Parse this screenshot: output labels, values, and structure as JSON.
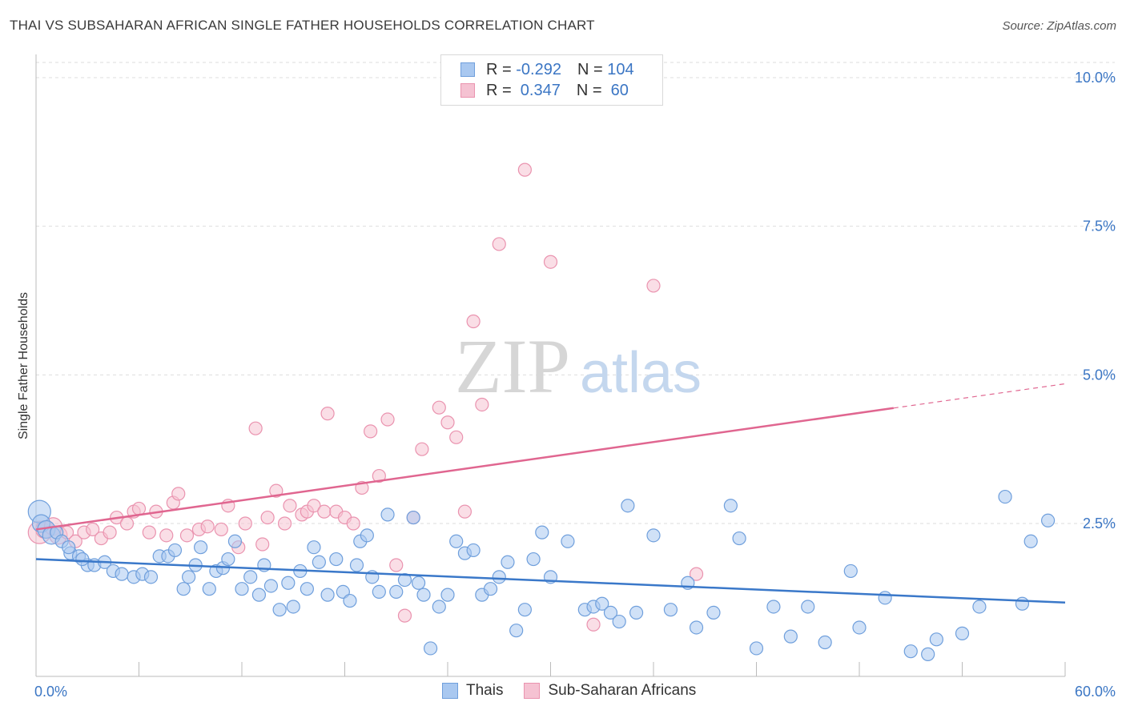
{
  "title": "THAI VS SUBSAHARAN AFRICAN SINGLE FATHER HOUSEHOLDS CORRELATION CHART",
  "source": "Source: ZipAtlas.com",
  "watermark": {
    "zip": "ZIP",
    "atlas": "atlas"
  },
  "legend_stats": [
    {
      "r_label": "R = ",
      "r_value": "-0.292",
      "n_label": "N = ",
      "n_value": "104"
    },
    {
      "r_label": "R = ",
      "r_value": " 0.347",
      "n_label": "N = ",
      "n_value": " 60"
    }
  ],
  "colors": {
    "thais_fill": "#a9c8f0",
    "thais_stroke": "#6f9fdc",
    "thais_line": "#3a78c9",
    "ssa_fill": "#f5c2d2",
    "ssa_stroke": "#ea93af",
    "ssa_line": "#e06690",
    "tick_label": "#3b76c4",
    "grid": "#dddddd"
  },
  "chart_data": {
    "type": "scatter",
    "title": "THAI VS SUBSAHARAN AFRICAN SINGLE FATHER HOUSEHOLDS CORRELATION CHART",
    "xlabel": "",
    "ylabel": "Single Father Households",
    "xlim": [
      0,
      60
    ],
    "ylim": [
      0,
      10.5
    ],
    "x_tick_labels": [
      "0.0%",
      "60.0%"
    ],
    "y_ticks": [
      2.5,
      5.0,
      7.5,
      10.0
    ],
    "y_tick_labels": [
      "2.5%",
      "5.0%",
      "7.5%",
      "10.0%"
    ],
    "grid": true,
    "legend_position": "top-center",
    "series": [
      {
        "name": "Thais",
        "r": -0.292,
        "n": 104,
        "trend": {
          "x": [
            0,
            60
          ],
          "y": [
            1.9,
            1.17
          ]
        },
        "points": [
          [
            0.2,
            2.7
          ],
          [
            0.3,
            2.5
          ],
          [
            0.6,
            2.4
          ],
          [
            0.9,
            2.3
          ],
          [
            1.2,
            2.35
          ],
          [
            1.5,
            2.2
          ],
          [
            2.0,
            2.0
          ],
          [
            2.5,
            1.95
          ],
          [
            1.9,
            2.1
          ],
          [
            3.0,
            1.8
          ],
          [
            2.7,
            1.9
          ],
          [
            3.4,
            1.8
          ],
          [
            4.0,
            1.85
          ],
          [
            4.5,
            1.7
          ],
          [
            5.0,
            1.65
          ],
          [
            5.7,
            1.6
          ],
          [
            6.2,
            1.65
          ],
          [
            6.7,
            1.6
          ],
          [
            7.2,
            1.95
          ],
          [
            7.7,
            1.95
          ],
          [
            8.1,
            2.05
          ],
          [
            8.6,
            1.4
          ],
          [
            8.9,
            1.6
          ],
          [
            9.3,
            1.8
          ],
          [
            9.6,
            2.1
          ],
          [
            10.1,
            1.4
          ],
          [
            10.5,
            1.7
          ],
          [
            10.9,
            1.75
          ],
          [
            11.2,
            1.9
          ],
          [
            11.6,
            2.2
          ],
          [
            12.0,
            1.4
          ],
          [
            12.5,
            1.6
          ],
          [
            13.0,
            1.3
          ],
          [
            13.3,
            1.8
          ],
          [
            13.7,
            1.45
          ],
          [
            14.2,
            1.05
          ],
          [
            14.7,
            1.5
          ],
          [
            15.0,
            1.1
          ],
          [
            15.4,
            1.7
          ],
          [
            15.8,
            1.4
          ],
          [
            16.2,
            2.1
          ],
          [
            16.5,
            1.85
          ],
          [
            17.0,
            1.3
          ],
          [
            17.5,
            1.9
          ],
          [
            17.9,
            1.35
          ],
          [
            18.3,
            1.2
          ],
          [
            18.7,
            1.8
          ],
          [
            18.9,
            2.2
          ],
          [
            19.3,
            2.3
          ],
          [
            19.6,
            1.6
          ],
          [
            20.0,
            1.35
          ],
          [
            20.5,
            2.65
          ],
          [
            21.0,
            1.35
          ],
          [
            21.5,
            1.55
          ],
          [
            22.0,
            2.6
          ],
          [
            22.3,
            1.5
          ],
          [
            22.6,
            1.3
          ],
          [
            23.0,
            0.4
          ],
          [
            23.5,
            1.1
          ],
          [
            24.0,
            1.3
          ],
          [
            24.5,
            2.2
          ],
          [
            25.0,
            2.0
          ],
          [
            25.5,
            2.05
          ],
          [
            26.0,
            1.3
          ],
          [
            26.5,
            1.4
          ],
          [
            27.0,
            1.6
          ],
          [
            27.5,
            1.85
          ],
          [
            28.0,
            0.7
          ],
          [
            28.5,
            1.05
          ],
          [
            29.0,
            1.9
          ],
          [
            29.5,
            2.35
          ],
          [
            30.0,
            1.6
          ],
          [
            31.0,
            2.2
          ],
          [
            32.0,
            1.05
          ],
          [
            32.5,
            1.1
          ],
          [
            33.0,
            1.15
          ],
          [
            33.5,
            1.0
          ],
          [
            34.0,
            0.85
          ],
          [
            34.5,
            2.8
          ],
          [
            35.0,
            1.0
          ],
          [
            36.0,
            2.3
          ],
          [
            37.0,
            1.05
          ],
          [
            38.0,
            1.5
          ],
          [
            38.5,
            0.75
          ],
          [
            39.5,
            1.0
          ],
          [
            40.5,
            2.8
          ],
          [
            41.0,
            2.25
          ],
          [
            42.0,
            0.4
          ],
          [
            43.0,
            1.1
          ],
          [
            44.0,
            0.6
          ],
          [
            45.0,
            1.1
          ],
          [
            46.0,
            0.5
          ],
          [
            47.5,
            1.7
          ],
          [
            48.0,
            0.75
          ],
          [
            49.5,
            1.25
          ],
          [
            51.0,
            0.35
          ],
          [
            52.0,
            0.3
          ],
          [
            52.5,
            0.55
          ],
          [
            54.0,
            0.65
          ],
          [
            55.0,
            1.1
          ],
          [
            56.5,
            2.95
          ],
          [
            57.5,
            1.15
          ],
          [
            58.0,
            2.2
          ],
          [
            59.0,
            2.55
          ]
        ]
      },
      {
        "name": "Sub-Saharan Africans",
        "r": 0.347,
        "n": 60,
        "trend": {
          "x": [
            0,
            60
          ],
          "y": [
            2.4,
            4.85
          ]
        },
        "points": [
          [
            0.2,
            2.35
          ],
          [
            0.5,
            2.4
          ],
          [
            1.0,
            2.45
          ],
          [
            1.3,
            2.3
          ],
          [
            1.8,
            2.35
          ],
          [
            2.3,
            2.2
          ],
          [
            2.8,
            2.35
          ],
          [
            3.3,
            2.4
          ],
          [
            3.8,
            2.25
          ],
          [
            4.3,
            2.35
          ],
          [
            4.7,
            2.6
          ],
          [
            5.3,
            2.5
          ],
          [
            5.7,
            2.7
          ],
          [
            6.0,
            2.75
          ],
          [
            6.6,
            2.35
          ],
          [
            7.0,
            2.7
          ],
          [
            7.6,
            2.3
          ],
          [
            8.0,
            2.85
          ],
          [
            8.3,
            3.0
          ],
          [
            8.8,
            2.3
          ],
          [
            9.5,
            2.4
          ],
          [
            10.0,
            2.45
          ],
          [
            10.8,
            2.4
          ],
          [
            11.2,
            2.8
          ],
          [
            11.8,
            2.1
          ],
          [
            12.2,
            2.5
          ],
          [
            12.8,
            4.1
          ],
          [
            13.2,
            2.15
          ],
          [
            13.5,
            2.6
          ],
          [
            14.0,
            3.05
          ],
          [
            14.5,
            2.5
          ],
          [
            14.8,
            2.8
          ],
          [
            15.5,
            2.65
          ],
          [
            15.8,
            2.7
          ],
          [
            16.2,
            2.8
          ],
          [
            16.8,
            2.7
          ],
          [
            17.0,
            4.35
          ],
          [
            17.5,
            2.7
          ],
          [
            18.0,
            2.6
          ],
          [
            18.5,
            2.5
          ],
          [
            19.0,
            3.1
          ],
          [
            19.5,
            4.05
          ],
          [
            20.0,
            3.3
          ],
          [
            20.5,
            4.25
          ],
          [
            21.0,
            1.8
          ],
          [
            21.5,
            0.95
          ],
          [
            22.0,
            2.6
          ],
          [
            22.5,
            3.75
          ],
          [
            23.5,
            4.45
          ],
          [
            24.0,
            4.2
          ],
          [
            24.5,
            3.95
          ],
          [
            25.0,
            2.7
          ],
          [
            25.5,
            5.9
          ],
          [
            26.0,
            4.5
          ],
          [
            27.0,
            7.2
          ],
          [
            28.5,
            8.45
          ],
          [
            30.0,
            6.9
          ],
          [
            32.5,
            0.8
          ],
          [
            36.0,
            6.5
          ],
          [
            38.5,
            1.65
          ]
        ]
      }
    ]
  },
  "bottom_legend": [
    "Thais",
    "Sub-Saharan Africans"
  ]
}
